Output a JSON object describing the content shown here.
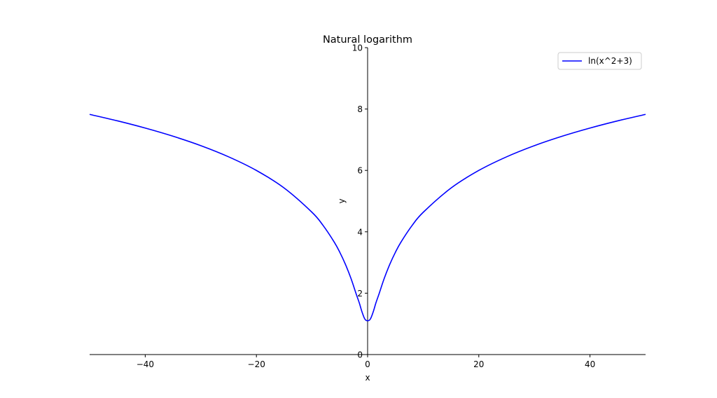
{
  "chart_data": {
    "type": "line",
    "title": "Natural logarithm",
    "xlabel": "x",
    "ylabel": "y",
    "xlim": [
      -50,
      50
    ],
    "ylim": [
      0,
      10
    ],
    "x_ticks": [
      -40,
      -20,
      0,
      20,
      40
    ],
    "x_tick_labels": [
      "−40",
      "−20",
      "0",
      "20",
      "40"
    ],
    "y_ticks": [
      0,
      2,
      4,
      6,
      8,
      10
    ],
    "y_tick_labels": [
      "0",
      "2",
      "4",
      "6",
      "8",
      "10"
    ],
    "grid": false,
    "legend_position": "top-right",
    "series": [
      {
        "name": "ln(x^2+3)",
        "color": "#0000ff",
        "x": [
          -50,
          -45,
          -40,
          -35,
          -30,
          -25,
          -20,
          -15,
          -10,
          -8,
          -6,
          -5,
          -4,
          -3,
          -2,
          -1.5,
          -1,
          -0.5,
          0,
          0.5,
          1,
          1.5,
          2,
          3,
          4,
          5,
          6,
          8,
          10,
          15,
          20,
          25,
          30,
          35,
          40,
          45,
          50
        ],
        "y": [
          7.825,
          7.615,
          7.38,
          7.114,
          6.807,
          6.443,
          5.999,
          5.425,
          4.635,
          4.205,
          3.664,
          3.332,
          2.944,
          2.485,
          1.946,
          1.686,
          1.386,
          1.159,
          1.099,
          1.159,
          1.386,
          1.686,
          1.946,
          2.485,
          2.944,
          3.332,
          3.664,
          4.205,
          4.635,
          5.425,
          5.999,
          6.443,
          6.807,
          7.114,
          7.38,
          7.615,
          7.825
        ]
      }
    ]
  }
}
